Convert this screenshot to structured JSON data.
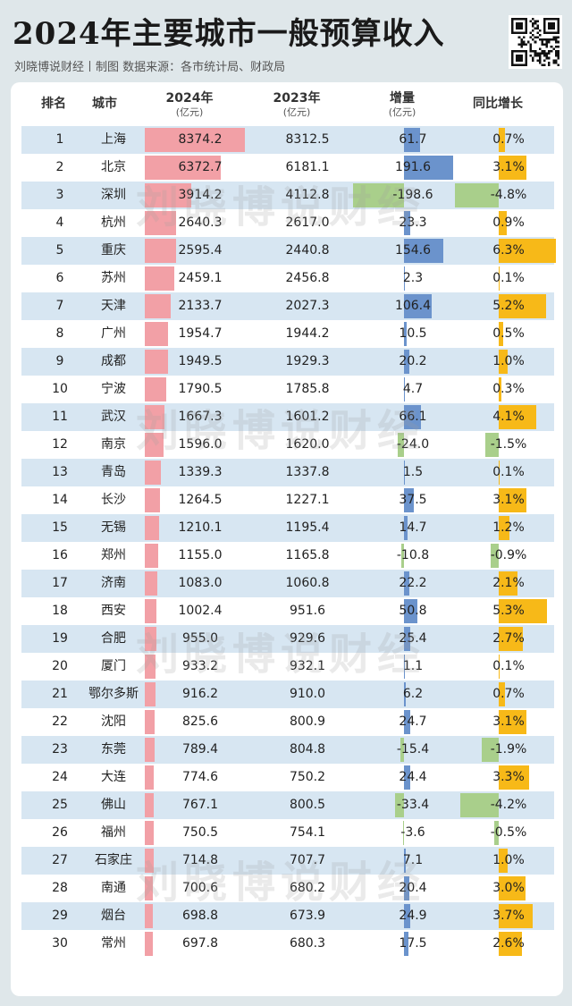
{
  "header": {
    "title": "2024年主要城市一般预算收入",
    "subtitle": "刘晓博说财经丨制图   数据来源：各市统计局、财政局",
    "watermark": "刘晓博说财经"
  },
  "table": {
    "columns": [
      {
        "label": "排名",
        "unit": ""
      },
      {
        "label": "城市",
        "unit": ""
      },
      {
        "label": "2024年",
        "unit": "(亿元)"
      },
      {
        "label": "2023年",
        "unit": "(亿元)"
      },
      {
        "label": "增量",
        "unit": "(亿元)"
      },
      {
        "label": "同比增长",
        "unit": ""
      }
    ]
  },
  "colors": {
    "bar_2024": "#f2a0a6",
    "increase_positive": "#6b93cc",
    "increase_negative": "#a9cf8b",
    "growth_positive": "#f7b918",
    "growth_negative": "#a9cf8b",
    "row_stripe": "#d7e6f2"
  },
  "chart_data": {
    "type": "table",
    "title": "2024年主要城市一般预算收入",
    "rows": [
      {
        "rank": "1",
        "city": "上海",
        "v2024": "8374.2",
        "v2023": "8312.5",
        "increase": "61.7",
        "yoy": "0.7%"
      },
      {
        "rank": "2",
        "city": "北京",
        "v2024": "6372.7",
        "v2023": "6181.1",
        "increase": "191.6",
        "yoy": "3.1%"
      },
      {
        "rank": "3",
        "city": "深圳",
        "v2024": "3914.2",
        "v2023": "4112.8",
        "increase": "-198.6",
        "yoy": "-4.8%"
      },
      {
        "rank": "4",
        "city": "杭州",
        "v2024": "2640.3",
        "v2023": "2617.0",
        "increase": "23.3",
        "yoy": "0.9%"
      },
      {
        "rank": "5",
        "city": "重庆",
        "v2024": "2595.4",
        "v2023": "2440.8",
        "increase": "154.6",
        "yoy": "6.3%"
      },
      {
        "rank": "6",
        "city": "苏州",
        "v2024": "2459.1",
        "v2023": "2456.8",
        "increase": "2.3",
        "yoy": "0.1%"
      },
      {
        "rank": "7",
        "city": "天津",
        "v2024": "2133.7",
        "v2023": "2027.3",
        "increase": "106.4",
        "yoy": "5.2%"
      },
      {
        "rank": "8",
        "city": "广州",
        "v2024": "1954.7",
        "v2023": "1944.2",
        "increase": "10.5",
        "yoy": "0.5%"
      },
      {
        "rank": "9",
        "city": "成都",
        "v2024": "1949.5",
        "v2023": "1929.3",
        "increase": "20.2",
        "yoy": "1.0%"
      },
      {
        "rank": "10",
        "city": "宁波",
        "v2024": "1790.5",
        "v2023": "1785.8",
        "increase": "4.7",
        "yoy": "0.3%"
      },
      {
        "rank": "11",
        "city": "武汉",
        "v2024": "1667.3",
        "v2023": "1601.2",
        "increase": "66.1",
        "yoy": "4.1%"
      },
      {
        "rank": "12",
        "city": "南京",
        "v2024": "1596.0",
        "v2023": "1620.0",
        "increase": "-24.0",
        "yoy": "-1.5%"
      },
      {
        "rank": "13",
        "city": "青岛",
        "v2024": "1339.3",
        "v2023": "1337.8",
        "increase": "1.5",
        "yoy": "0.1%"
      },
      {
        "rank": "14",
        "city": "长沙",
        "v2024": "1264.5",
        "v2023": "1227.1",
        "increase": "37.5",
        "yoy": "3.1%"
      },
      {
        "rank": "15",
        "city": "无锡",
        "v2024": "1210.1",
        "v2023": "1195.4",
        "increase": "14.7",
        "yoy": "1.2%"
      },
      {
        "rank": "16",
        "city": "郑州",
        "v2024": "1155.0",
        "v2023": "1165.8",
        "increase": "-10.8",
        "yoy": "-0.9%"
      },
      {
        "rank": "17",
        "city": "济南",
        "v2024": "1083.0",
        "v2023": "1060.8",
        "increase": "22.2",
        "yoy": "2.1%"
      },
      {
        "rank": "18",
        "city": "西安",
        "v2024": "1002.4",
        "v2023": "951.6",
        "increase": "50.8",
        "yoy": "5.3%"
      },
      {
        "rank": "19",
        "city": "合肥",
        "v2024": "955.0",
        "v2023": "929.6",
        "increase": "25.4",
        "yoy": "2.7%"
      },
      {
        "rank": "20",
        "city": "厦门",
        "v2024": "933.2",
        "v2023": "932.1",
        "increase": "1.1",
        "yoy": "0.1%"
      },
      {
        "rank": "21",
        "city": "鄂尔多斯",
        "v2024": "916.2",
        "v2023": "910.0",
        "increase": "6.2",
        "yoy": "0.7%"
      },
      {
        "rank": "22",
        "city": "沈阳",
        "v2024": "825.6",
        "v2023": "800.9",
        "increase": "24.7",
        "yoy": "3.1%"
      },
      {
        "rank": "23",
        "city": "东莞",
        "v2024": "789.4",
        "v2023": "804.8",
        "increase": "-15.4",
        "yoy": "-1.9%"
      },
      {
        "rank": "24",
        "city": "大连",
        "v2024": "774.6",
        "v2023": "750.2",
        "increase": "24.4",
        "yoy": "3.3%"
      },
      {
        "rank": "25",
        "city": "佛山",
        "v2024": "767.1",
        "v2023": "800.5",
        "increase": "-33.4",
        "yoy": "-4.2%"
      },
      {
        "rank": "26",
        "city": "福州",
        "v2024": "750.5",
        "v2023": "754.1",
        "increase": "-3.6",
        "yoy": "-0.5%"
      },
      {
        "rank": "27",
        "city": "石家庄",
        "v2024": "714.8",
        "v2023": "707.7",
        "increase": "7.1",
        "yoy": "1.0%"
      },
      {
        "rank": "28",
        "city": "南通",
        "v2024": "700.6",
        "v2023": "680.2",
        "increase": "20.4",
        "yoy": "3.0%"
      },
      {
        "rank": "29",
        "city": "烟台",
        "v2024": "698.8",
        "v2023": "673.9",
        "increase": "24.9",
        "yoy": "3.7%"
      },
      {
        "rank": "30",
        "city": "常州",
        "v2024": "697.8",
        "v2023": "680.3",
        "increase": "17.5",
        "yoy": "2.6%"
      }
    ]
  }
}
